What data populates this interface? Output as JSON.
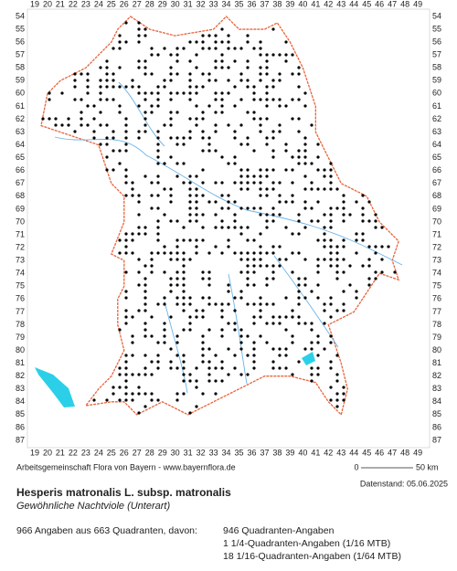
{
  "map": {
    "columns": [
      19,
      20,
      21,
      22,
      23,
      24,
      25,
      26,
      27,
      28,
      29,
      30,
      31,
      32,
      33,
      34,
      35,
      36,
      37,
      38,
      39,
      40,
      41,
      42,
      43,
      44,
      45,
      46,
      47,
      48,
      49
    ],
    "rows": [
      54,
      55,
      56,
      57,
      58,
      59,
      60,
      61,
      62,
      63,
      64,
      65,
      66,
      67,
      68,
      69,
      70,
      71,
      72,
      73,
      74,
      75,
      76,
      77,
      78,
      79,
      80,
      81,
      82,
      83,
      84,
      85,
      86,
      87
    ],
    "source": "Arbeitsgemeinschaft Flora von Bayern - www.bayernflora.de",
    "scale_start": "0",
    "scale_end": "50 km",
    "date": "Datenstand: 05.06.2025"
  },
  "species": {
    "title": "Hesperis matronalis L. subsp. matronalis",
    "subtitle": "Gewöhnliche Nachtviole (Unterart)"
  },
  "stats": {
    "summary": "966 Angaben aus 663 Quadranten, davon:",
    "lines": [
      "946 Quadranten-Angaben",
      "1 1/4-Quadranten-Angaben (1/16 MTB)",
      "18 1/16-Quadranten-Angaben (1/64 MTB)"
    ]
  }
}
